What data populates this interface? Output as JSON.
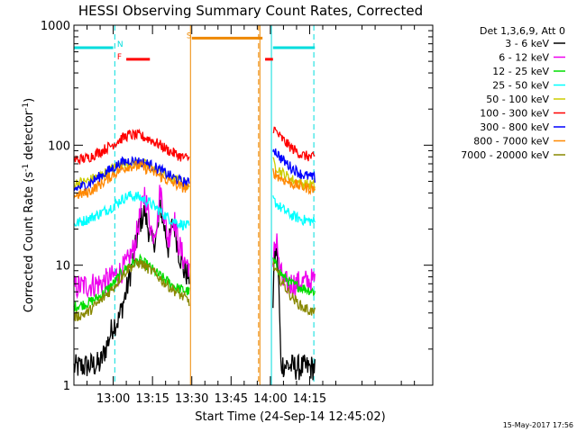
{
  "chart_data": {
    "type": "line",
    "title": "HESSI Observing Summary Count Rates, Corrected",
    "xlabel": "Start Time (24-Sep-14 12:45:02)",
    "ylabel_main": "Corrected Count Rate (s",
    "ylabel_sup1": "-1",
    "ylabel_mid": " detector",
    "ylabel_sup2": "-1",
    "ylabel_end": ")",
    "y_scale": "log",
    "ylim": [
      1,
      1000
    ],
    "xlim_minutes": [
      45,
      182
    ],
    "y_ticks": [
      {
        "value": 1,
        "label": "1"
      },
      {
        "value": 10,
        "label": "10"
      },
      {
        "value": 100,
        "label": "100"
      },
      {
        "value": 1000,
        "label": "1000"
      }
    ],
    "x_ticks": [
      {
        "value": 60,
        "label": "13:00"
      },
      {
        "value": 75,
        "label": "13:15"
      },
      {
        "value": 90,
        "label": "13:30"
      },
      {
        "value": 105,
        "label": "13:45"
      },
      {
        "value": 120,
        "label": "14:00"
      },
      {
        "value": 135,
        "label": "14:15"
      }
    ],
    "legend_title": "Det 1,3,6,9, Att 0",
    "legend_position": "right",
    "series": [
      {
        "name": "3 - 6 keV",
        "color": "#000000",
        "seg1": [
          [
            45,
            1.4
          ],
          [
            55,
            1.5
          ],
          [
            58,
            2.3
          ],
          [
            60,
            3.2
          ],
          [
            62,
            3.5
          ],
          [
            65,
            6
          ],
          [
            68,
            12
          ],
          [
            70,
            22
          ],
          [
            72,
            28
          ],
          [
            73,
            22
          ],
          [
            75,
            15
          ],
          [
            77,
            19
          ],
          [
            78,
            32
          ],
          [
            79,
            24
          ],
          [
            81,
            14
          ],
          [
            83,
            24
          ],
          [
            85,
            13
          ],
          [
            87,
            9
          ],
          [
            89,
            8
          ]
        ],
        "seg2": [
          [
            121,
            5
          ],
          [
            121.5,
            11
          ],
          [
            122.5,
            14
          ],
          [
            123.2,
            7
          ],
          [
            124,
            1.5
          ],
          [
            130,
            1.4
          ],
          [
            137,
            1.4
          ]
        ]
      },
      {
        "name": "6 - 12 keV",
        "color": "#ee00ee",
        "seg1": [
          [
            45,
            6.5
          ],
          [
            50,
            6.8
          ],
          [
            55,
            7
          ],
          [
            58,
            7.5
          ],
          [
            60,
            8
          ],
          [
            62,
            8.5
          ],
          [
            65,
            10
          ],
          [
            68,
            14
          ],
          [
            70,
            24
          ],
          [
            72,
            40
          ],
          [
            73,
            30
          ],
          [
            75,
            18
          ],
          [
            77,
            24
          ],
          [
            78,
            44
          ],
          [
            79,
            30
          ],
          [
            81,
            16
          ],
          [
            83,
            26
          ],
          [
            85,
            15
          ],
          [
            87,
            11
          ],
          [
            89,
            10
          ]
        ],
        "seg2": [
          [
            121,
            8
          ],
          [
            121.5,
            13
          ],
          [
            122.5,
            18
          ],
          [
            123.2,
            10
          ],
          [
            125,
            7
          ],
          [
            130,
            7
          ],
          [
            137,
            7.5
          ]
        ]
      },
      {
        "name": "12 - 25 keV",
        "color": "#00dd00",
        "seg1": [
          [
            45,
            4.5
          ],
          [
            50,
            4.8
          ],
          [
            55,
            5.5
          ],
          [
            60,
            7
          ],
          [
            63,
            8.5
          ],
          [
            66,
            10
          ],
          [
            70,
            11
          ],
          [
            73,
            10
          ],
          [
            76,
            8.8
          ],
          [
            80,
            7.5
          ],
          [
            84,
            6.5
          ],
          [
            89,
            6
          ]
        ],
        "seg2": [
          [
            121,
            11
          ],
          [
            124,
            8.5
          ],
          [
            128,
            7
          ],
          [
            132,
            6.5
          ],
          [
            137,
            6
          ]
        ]
      },
      {
        "name": "25 - 50 keV",
        "color": "#00ffff",
        "seg1": [
          [
            45,
            22
          ],
          [
            50,
            24
          ],
          [
            55,
            27
          ],
          [
            60,
            31
          ],
          [
            63,
            35
          ],
          [
            66,
            38
          ],
          [
            70,
            37
          ],
          [
            74,
            33
          ],
          [
            78,
            28
          ],
          [
            82,
            24
          ],
          [
            86,
            22
          ],
          [
            89,
            21
          ]
        ],
        "seg2": [
          [
            121,
            35
          ],
          [
            124,
            30
          ],
          [
            128,
            26
          ],
          [
            132,
            24
          ],
          [
            137,
            23
          ]
        ]
      },
      {
        "name": "50 - 100 keV",
        "color": "#cccc00",
        "seg1": [
          [
            45,
            48
          ],
          [
            50,
            50
          ],
          [
            55,
            56
          ],
          [
            60,
            64
          ],
          [
            63,
            69
          ],
          [
            66,
            72
          ],
          [
            70,
            71
          ],
          [
            74,
            67
          ],
          [
            78,
            60
          ],
          [
            82,
            53
          ],
          [
            86,
            49
          ],
          [
            89,
            47
          ]
        ],
        "seg2": [
          [
            121,
            72
          ],
          [
            124,
            60
          ],
          [
            128,
            52
          ],
          [
            132,
            48
          ],
          [
            137,
            46
          ]
        ]
      },
      {
        "name": "100 - 300 keV",
        "color": "#ff0000",
        "seg1": [
          [
            45,
            75
          ],
          [
            50,
            78
          ],
          [
            55,
            88
          ],
          [
            60,
            102
          ],
          [
            63,
            113
          ],
          [
            66,
            122
          ],
          [
            70,
            120
          ],
          [
            74,
            112
          ],
          [
            78,
            100
          ],
          [
            82,
            88
          ],
          [
            86,
            80
          ],
          [
            89,
            77
          ]
        ],
        "seg2": [
          [
            121,
            140
          ],
          [
            124,
            115
          ],
          [
            128,
            95
          ],
          [
            132,
            83
          ],
          [
            137,
            78
          ]
        ]
      },
      {
        "name": "300 - 800 keV",
        "color": "#0000ff",
        "seg1": [
          [
            45,
            43
          ],
          [
            50,
            47
          ],
          [
            55,
            55
          ],
          [
            60,
            65
          ],
          [
            63,
            71
          ],
          [
            66,
            74
          ],
          [
            70,
            73
          ],
          [
            74,
            69
          ],
          [
            78,
            62
          ],
          [
            82,
            55
          ],
          [
            86,
            50
          ],
          [
            89,
            48
          ]
        ],
        "seg2": [
          [
            121,
            95
          ],
          [
            124,
            78
          ],
          [
            128,
            65
          ],
          [
            132,
            57
          ],
          [
            137,
            53
          ]
        ]
      },
      {
        "name": "800 - 7000 keV",
        "color": "#ff8800",
        "seg1": [
          [
            45,
            38
          ],
          [
            50,
            40
          ],
          [
            55,
            47
          ],
          [
            60,
            57
          ],
          [
            63,
            63
          ],
          [
            66,
            67
          ],
          [
            70,
            67
          ],
          [
            74,
            62
          ],
          [
            78,
            55
          ],
          [
            82,
            49
          ],
          [
            86,
            45
          ],
          [
            89,
            43
          ]
        ],
        "seg2": [
          [
            121,
            60
          ],
          [
            124,
            53
          ],
          [
            128,
            48
          ],
          [
            132,
            45
          ],
          [
            137,
            43
          ]
        ]
      },
      {
        "name": "7000 - 20000 keV",
        "color": "#888800",
        "seg1": [
          [
            45,
            3.7
          ],
          [
            50,
            4
          ],
          [
            55,
            5
          ],
          [
            60,
            6.5
          ],
          [
            63,
            8
          ],
          [
            66,
            9.5
          ],
          [
            70,
            10.5
          ],
          [
            73,
            9.5
          ],
          [
            76,
            8.5
          ],
          [
            80,
            7
          ],
          [
            84,
            6
          ],
          [
            89,
            5
          ]
        ],
        "seg2": [
          [
            121,
            10
          ],
          [
            124,
            7.5
          ],
          [
            128,
            5.5
          ],
          [
            132,
            4.5
          ],
          [
            137,
            4
          ]
        ]
      }
    ],
    "markers": [
      {
        "label": "N",
        "color": "#00dddd",
        "x": 61.5,
        "y": 660
      },
      {
        "label": "F",
        "color": "#ff0000",
        "x": 61.5,
        "y": 520
      },
      {
        "label": "S",
        "color": "#ee8800",
        "x": 88,
        "y": 780
      }
    ],
    "flags": [
      {
        "color": "#00dddd",
        "from": 45,
        "to": 60,
        "y": 650
      },
      {
        "color": "#00dddd",
        "from": 121,
        "to": 137,
        "y": 650
      },
      {
        "color": "#ff0000",
        "from": 65,
        "to": 74,
        "y": 520
      },
      {
        "color": "#ff0000",
        "from": 118,
        "to": 121,
        "y": 520
      },
      {
        "color": "#ee8800",
        "from": 90,
        "to": 117,
        "y": 780
      }
    ],
    "vlines": [
      {
        "x": 60.6,
        "color": "#00dddd",
        "style": "dashed"
      },
      {
        "x": 120.4,
        "color": "#00dddd",
        "style": "solid"
      },
      {
        "x": 89.5,
        "color": "#ee8800",
        "style": "solid"
      },
      {
        "x": 115.5,
        "color": "#ee8800",
        "style": "dashed"
      },
      {
        "x": 116,
        "color": "#ee8800",
        "style": "solid"
      },
      {
        "x": 136.6,
        "color": "#00dddd",
        "style": "dashed"
      }
    ],
    "footer": "15-May-2017 17:56"
  }
}
